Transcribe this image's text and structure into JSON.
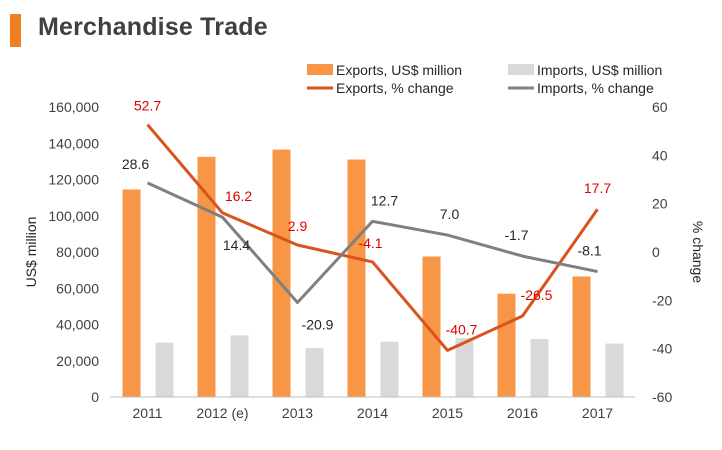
{
  "title": "Merchandise Trade",
  "chart_data": {
    "type": "bar",
    "categories": [
      "2011",
      "2012 (e)",
      "2013",
      "2014",
      "2015",
      "2016",
      "2017"
    ],
    "bar_series": [
      {
        "name": "Exports, US$ million",
        "color": "#f79646",
        "values": [
          114500,
          132500,
          136500,
          131000,
          77500,
          57000,
          66500
        ]
      },
      {
        "name": "Imports, US$ million",
        "color": "#d9d9d9",
        "values": [
          30000,
          34000,
          27000,
          30500,
          32500,
          32000,
          29500
        ]
      }
    ],
    "line_series": [
      {
        "name": "Exports, % change",
        "color": "#d9531e",
        "values": [
          52.7,
          16.2,
          2.9,
          -4.1,
          -40.7,
          -26.5,
          17.7
        ],
        "labels": [
          "52.7",
          "16.2",
          "2.9",
          "-4.1",
          "-40.7",
          "-26.5",
          "17.7"
        ],
        "label_color": "#e00000"
      },
      {
        "name": "Imports, % change",
        "color": "#808080",
        "values": [
          28.6,
          14.4,
          -20.9,
          12.7,
          7.0,
          -1.7,
          -8.1
        ],
        "labels": [
          "28.6",
          "14.4",
          "-20.9",
          "12.7",
          "7.0",
          "-1.7",
          "-8.1"
        ],
        "label_color": "#262626"
      }
    ],
    "ylabel": "US$ million",
    "y2label": "% change",
    "ylim": [
      0,
      160000
    ],
    "y2lim": [
      -60,
      60
    ],
    "y_ticks": [
      "0",
      "20,000",
      "40,000",
      "60,000",
      "80,000",
      "100,000",
      "120,000",
      "140,000",
      "160,000"
    ],
    "y2_ticks": [
      "-60",
      "-40",
      "-20",
      "0",
      "20",
      "40",
      "60"
    ],
    "grid": false,
    "legend_position": "top-right"
  }
}
